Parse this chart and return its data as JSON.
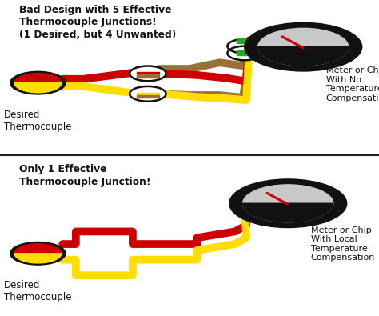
{
  "title_top": "Bad Design with 5 Effective\nThermocouple Junctions!\n(1 Desired, but 4 Unwanted)",
  "title_bottom": "Only 1 Effective\nThermocouple Junction!",
  "label_desired": "Desired\nThermocouple",
  "label_meter_no_comp": "Meter or Chip\nWith No\nTemperature\nCompensation",
  "label_meter_local_comp": "Meter or Chip\nWith Local\nTemperature\nCompensation",
  "bg_color": "#ffffff",
  "divider_color": "#222222",
  "red_color": "#cc0000",
  "yellow_color": "#ffdd00",
  "brown_color": "#9b7038",
  "green_color": "#22aa22",
  "black_color": "#111111",
  "gray_color": "#c8c8c8",
  "text_color": "#111111",
  "lw": 7
}
